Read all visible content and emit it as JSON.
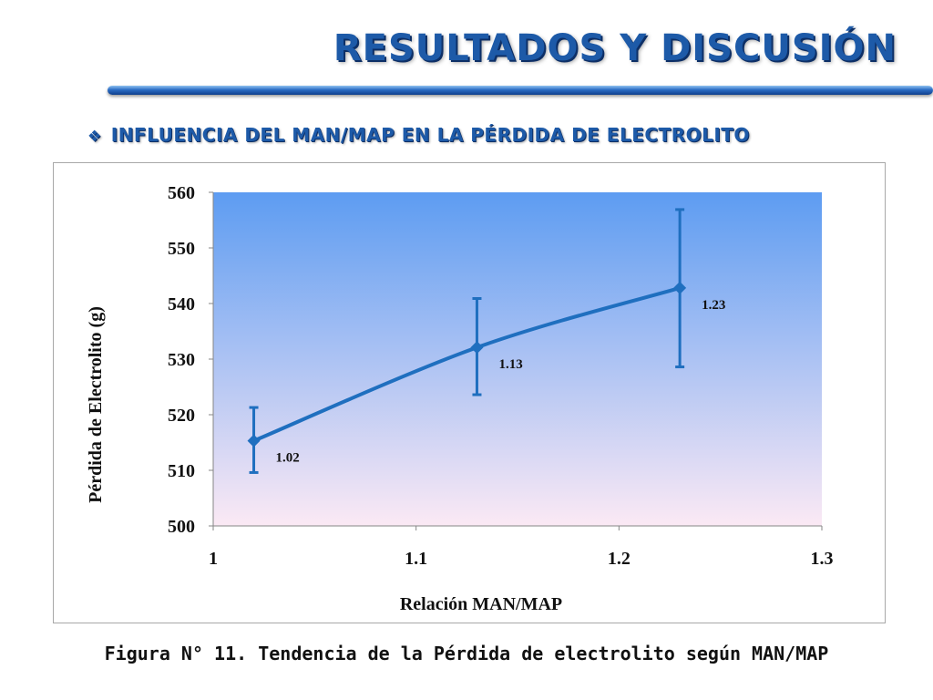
{
  "slide": {
    "title": "RESULTADOS Y DISCUSIÓN",
    "subtitle_bullet": "❖",
    "subtitle": "INFLUENCIA DEL MAN/MAP EN LA PÉRDIDA DE ELECTROLITO",
    "caption": "Figura N° 11. Tendencia de la Pérdida de electrolito según MAN/MAP"
  },
  "colors": {
    "title": "#1d5aa8",
    "series": "#1f6fbf",
    "plot_top": "#5d9cf2",
    "plot_bottom": "#fbe9f4"
  },
  "chart_data": {
    "type": "line",
    "title": "",
    "xlabel": "Relación MAN/MAP",
    "ylabel": "Pérdida de Electrolito (g)",
    "xlim": [
      1,
      1.3
    ],
    "ylim": [
      500,
      560
    ],
    "x_ticks": [
      "1",
      "1.1",
      "1.2",
      "1.3"
    ],
    "y_ticks": [
      "500",
      "510",
      "520",
      "530",
      "540",
      "550",
      "560"
    ],
    "grid": false,
    "smooth": true,
    "series": [
      {
        "x": [
          1.02,
          1.13,
          1.23
        ],
        "y": [
          515.3,
          532.1,
          542.8
        ],
        "error_low": [
          509.6,
          523.6,
          528.6
        ],
        "error_high": [
          521.3,
          540.9,
          556.9
        ],
        "data_labels": [
          "1.02",
          "1.13",
          "1.23"
        ]
      }
    ]
  }
}
